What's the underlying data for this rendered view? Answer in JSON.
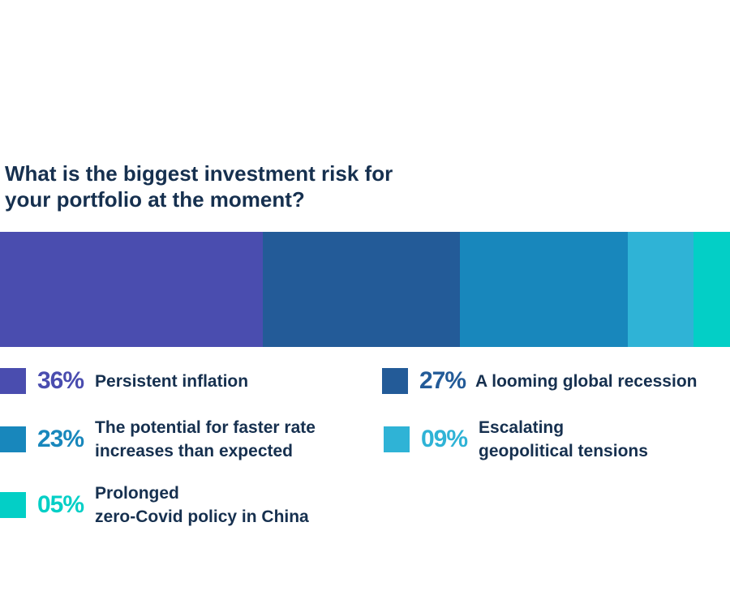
{
  "chart_data": {
    "type": "bar",
    "orientation": "stacked-horizontal-100",
    "title": [
      "What is the biggest investment risk for",
      "your portfolio at the moment?"
    ],
    "segments": [
      {
        "value": 36,
        "label_value": "36%",
        "label_lines": [
          "Persistent inflation"
        ],
        "color": "#4a4daf"
      },
      {
        "value": 27,
        "label_value": "27%",
        "label_lines": [
          "A looming global recession"
        ],
        "color": "#235b98"
      },
      {
        "value": 23,
        "label_value": "23%",
        "label_lines": [
          "The potential for faster rate",
          "increases than expected"
        ],
        "color": "#1887bc"
      },
      {
        "value": 9,
        "label_value": "09%",
        "label_lines": [
          "Escalating",
          "geopolitical tensions"
        ],
        "color": "#2fb3d6"
      },
      {
        "value": 5,
        "label_value": "05%",
        "label_lines": [
          "Prolonged",
          "zero-Covid policy in China"
        ],
        "color": "#03cfc6"
      }
    ],
    "xlim": [
      0,
      100
    ],
    "legend": "below-chart"
  }
}
